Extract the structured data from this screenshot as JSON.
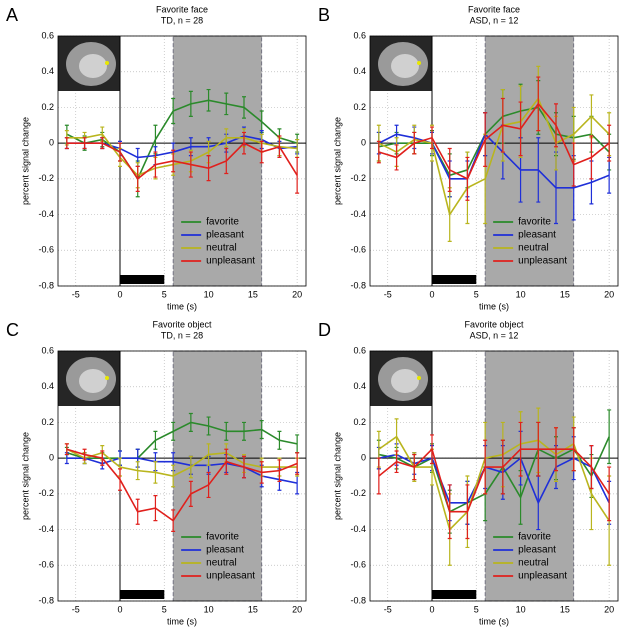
{
  "chart_data": [
    {
      "type": "line",
      "panel_label": "A",
      "title": "Favorite face",
      "subtitle": "TD, n = 28",
      "xlabel": "time (s)",
      "ylabel": "percent signal change",
      "x": [
        -6,
        -4,
        -2,
        0,
        2,
        4,
        6,
        8,
        10,
        12,
        14,
        16,
        18,
        20
      ],
      "xlim": [
        -7,
        21
      ],
      "xticks": [
        -5,
        0,
        5,
        10,
        15,
        20
      ],
      "ylim": [
        -0.8,
        0.6
      ],
      "yticks": [
        -0.8,
        -0.6,
        -0.4,
        -0.2,
        0,
        0.2,
        0.4,
        0.6
      ],
      "grid": true,
      "legend": "lower right",
      "shaded_region": [
        6,
        16
      ],
      "stimulus": [
        0,
        5
      ],
      "series": [
        {
          "name": "favorite",
          "color": "#2b8a2b",
          "values": [
            0.05,
            0.0,
            0.02,
            -0.05,
            -0.2,
            0.02,
            0.18,
            0.22,
            0.24,
            0.22,
            0.2,
            0.12,
            0.03,
            0.0
          ],
          "errors": [
            0.05,
            0.04,
            0.04,
            0.05,
            0.1,
            0.08,
            0.07,
            0.07,
            0.06,
            0.06,
            0.06,
            0.06,
            0.05,
            0.05
          ]
        },
        {
          "name": "pleasant",
          "color": "#1f2fd8",
          "values": [
            0.0,
            0.0,
            0.0,
            -0.03,
            -0.08,
            -0.07,
            -0.05,
            -0.02,
            -0.02,
            0.0,
            0.04,
            0.02,
            -0.03,
            -0.02
          ],
          "errors": [
            0.03,
            0.03,
            0.03,
            0.04,
            0.05,
            0.05,
            0.05,
            0.05,
            0.05,
            0.05,
            0.05,
            0.05,
            0.04,
            0.04
          ]
        },
        {
          "name": "neutral",
          "color": "#b9b51e",
          "values": [
            0.03,
            0.03,
            0.05,
            -0.08,
            -0.18,
            -0.14,
            -0.12,
            -0.1,
            -0.05,
            0.03,
            0.03,
            0.0,
            -0.02,
            -0.03
          ],
          "errors": [
            0.04,
            0.03,
            0.04,
            0.05,
            0.07,
            0.06,
            0.06,
            0.06,
            0.06,
            0.05,
            0.05,
            0.05,
            0.05,
            0.05
          ]
        },
        {
          "name": "unpleasant",
          "color": "#e0201c",
          "values": [
            0.0,
            0.0,
            0.0,
            -0.05,
            -0.2,
            -0.12,
            -0.1,
            -0.12,
            -0.14,
            -0.1,
            0.0,
            -0.05,
            -0.02,
            -0.18
          ],
          "errors": [
            0.03,
            0.03,
            0.03,
            0.05,
            0.07,
            0.07,
            0.06,
            0.07,
            0.07,
            0.07,
            0.06,
            0.06,
            0.06,
            0.1
          ]
        }
      ]
    },
    {
      "type": "line",
      "panel_label": "B",
      "title": "Favorite face",
      "subtitle": "ASD, n = 12",
      "xlabel": "time (s)",
      "ylabel": "percent signal change",
      "x": [
        -6,
        -4,
        -2,
        0,
        2,
        4,
        6,
        8,
        10,
        12,
        14,
        16,
        18,
        20
      ],
      "xlim": [
        -7,
        21
      ],
      "xticks": [
        -5,
        0,
        5,
        10,
        15,
        20
      ],
      "ylim": [
        -0.8,
        0.6
      ],
      "yticks": [
        -0.8,
        -0.6,
        -0.4,
        -0.2,
        0,
        0.2,
        0.4,
        0.6
      ],
      "grid": true,
      "legend": "lower right",
      "shaded_region": [
        6,
        16
      ],
      "stimulus": [
        0,
        5
      ],
      "series": [
        {
          "name": "favorite",
          "color": "#2b8a2b",
          "values": [
            -0.02,
            0.0,
            0.0,
            0.0,
            -0.18,
            -0.15,
            0.05,
            0.15,
            0.18,
            0.2,
            0.05,
            0.03,
            0.05,
            -0.05
          ],
          "errors": [
            0.08,
            0.06,
            0.06,
            0.07,
            0.12,
            0.1,
            0.12,
            0.15,
            0.15,
            0.15,
            0.12,
            0.12,
            0.1,
            0.1
          ]
        },
        {
          "name": "pleasant",
          "color": "#1f2fd8",
          "values": [
            0.0,
            0.05,
            0.03,
            0.0,
            -0.2,
            -0.2,
            0.05,
            -0.05,
            -0.15,
            -0.15,
            -0.25,
            -0.25,
            -0.22,
            -0.18
          ],
          "errors": [
            0.06,
            0.05,
            0.06,
            0.06,
            0.1,
            0.1,
            0.12,
            0.15,
            0.18,
            0.18,
            0.2,
            0.18,
            0.12,
            0.1
          ]
        },
        {
          "name": "neutral",
          "color": "#b9b51e",
          "values": [
            0.0,
            -0.05,
            0.02,
            0.0,
            -0.4,
            -0.25,
            -0.2,
            0.1,
            0.12,
            0.25,
            0.0,
            0.05,
            0.15,
            0.05
          ],
          "errors": [
            0.1,
            0.08,
            0.08,
            0.1,
            0.15,
            0.2,
            0.25,
            0.2,
            0.2,
            0.18,
            0.15,
            0.15,
            0.12,
            0.12
          ]
        },
        {
          "name": "unpleasant",
          "color": "#e0201c",
          "values": [
            -0.05,
            -0.08,
            0.0,
            0.03,
            -0.15,
            -0.2,
            0.02,
            0.1,
            0.08,
            0.22,
            0.1,
            -0.12,
            -0.08,
            0.0
          ],
          "errors": [
            0.06,
            0.07,
            0.06,
            0.06,
            0.12,
            0.12,
            0.15,
            0.15,
            0.15,
            0.15,
            0.12,
            0.12,
            0.12,
            0.1
          ]
        }
      ]
    },
    {
      "type": "line",
      "panel_label": "C",
      "title": "Favorite object",
      "subtitle": "TD, n = 28",
      "xlabel": "time (s)",
      "ylabel": "percent signal change",
      "x": [
        -6,
        -4,
        -2,
        0,
        2,
        4,
        6,
        8,
        10,
        12,
        14,
        16,
        18,
        20
      ],
      "xlim": [
        -7,
        21
      ],
      "xticks": [
        -5,
        0,
        5,
        10,
        15,
        20
      ],
      "ylim": [
        -0.8,
        0.6
      ],
      "yticks": [
        -0.8,
        -0.6,
        -0.4,
        -0.2,
        0,
        0.2,
        0.4,
        0.6
      ],
      "grid": true,
      "legend": "lower right",
      "shaded_region": [
        6,
        16
      ],
      "stimulus": [
        0,
        5
      ],
      "series": [
        {
          "name": "favorite",
          "color": "#2b8a2b",
          "values": [
            0.03,
            0.0,
            0.0,
            0.0,
            0.0,
            0.1,
            0.15,
            0.2,
            0.18,
            0.15,
            0.15,
            0.16,
            0.1,
            0.08
          ],
          "errors": [
            0.03,
            0.03,
            0.03,
            0.04,
            0.05,
            0.05,
            0.05,
            0.05,
            0.05,
            0.05,
            0.05,
            0.05,
            0.05,
            0.05
          ]
        },
        {
          "name": "pleasant",
          "color": "#1f2fd8",
          "values": [
            0.0,
            0.0,
            -0.03,
            0.0,
            0.0,
            -0.02,
            -0.02,
            -0.04,
            -0.04,
            -0.03,
            -0.05,
            -0.1,
            -0.12,
            -0.14
          ],
          "errors": [
            0.03,
            0.03,
            0.03,
            0.04,
            0.05,
            0.05,
            0.05,
            0.05,
            0.05,
            0.05,
            0.06,
            0.06,
            0.06,
            0.06
          ]
        },
        {
          "name": "neutral",
          "color": "#b9b51e",
          "values": [
            0.05,
            0.0,
            0.03,
            -0.05,
            -0.07,
            -0.08,
            -0.1,
            -0.05,
            0.02,
            0.03,
            -0.03,
            -0.05,
            -0.05,
            -0.05
          ],
          "errors": [
            0.03,
            0.03,
            0.04,
            0.05,
            0.05,
            0.06,
            0.06,
            0.06,
            0.06,
            0.05,
            0.05,
            0.05,
            0.05,
            0.05
          ]
        },
        {
          "name": "unpleasant",
          "color": "#e0201c",
          "values": [
            0.05,
            0.02,
            0.0,
            -0.12,
            -0.3,
            -0.28,
            -0.35,
            -0.2,
            -0.15,
            -0.02,
            -0.05,
            -0.08,
            -0.07,
            -0.03
          ],
          "errors": [
            0.03,
            0.03,
            0.04,
            0.06,
            0.07,
            0.07,
            0.06,
            0.07,
            0.07,
            0.07,
            0.06,
            0.06,
            0.06,
            0.06
          ]
        }
      ]
    },
    {
      "type": "line",
      "panel_label": "D",
      "title": "Favorite object",
      "subtitle": "ASD, n = 12",
      "xlabel": "time (s)",
      "ylabel": "percent signal change",
      "x": [
        -6,
        -4,
        -2,
        0,
        2,
        4,
        6,
        8,
        10,
        12,
        14,
        16,
        18,
        20
      ],
      "xlim": [
        -7,
        21
      ],
      "xticks": [
        -5,
        0,
        5,
        10,
        15,
        20
      ],
      "ylim": [
        -0.8,
        0.6
      ],
      "yticks": [
        -0.8,
        -0.6,
        -0.4,
        -0.2,
        0,
        0.2,
        0.4,
        0.6
      ],
      "grid": true,
      "legend": "lower right",
      "shaded_region": [
        6,
        16
      ],
      "stimulus": [
        0,
        5
      ],
      "series": [
        {
          "name": "favorite",
          "color": "#2b8a2b",
          "values": [
            0.02,
            0.0,
            -0.05,
            0.0,
            -0.3,
            -0.25,
            -0.2,
            -0.05,
            -0.22,
            0.05,
            0.0,
            0.05,
            -0.1,
            0.12
          ],
          "errors": [
            0.08,
            0.06,
            0.07,
            0.08,
            0.12,
            0.12,
            0.15,
            0.15,
            0.15,
            0.15,
            0.12,
            0.12,
            0.12,
            0.15
          ]
        },
        {
          "name": "pleasant",
          "color": "#1f2fd8",
          "values": [
            0.0,
            0.02,
            -0.03,
            0.0,
            -0.25,
            -0.25,
            -0.05,
            -0.08,
            0.0,
            -0.25,
            -0.05,
            0.0,
            -0.05,
            -0.25
          ],
          "errors": [
            0.06,
            0.06,
            0.06,
            0.07,
            0.1,
            0.12,
            0.12,
            0.15,
            0.15,
            0.15,
            0.12,
            0.12,
            0.12,
            0.12
          ]
        },
        {
          "name": "neutral",
          "color": "#b9b51e",
          "values": [
            0.05,
            0.12,
            -0.05,
            -0.05,
            -0.4,
            -0.3,
            0.0,
            0.02,
            0.08,
            0.1,
            0.02,
            0.08,
            -0.2,
            -0.35
          ],
          "errors": [
            0.1,
            0.1,
            0.08,
            0.1,
            0.2,
            0.2,
            0.2,
            0.18,
            0.18,
            0.18,
            0.15,
            0.15,
            0.2,
            0.25
          ]
        },
        {
          "name": "unpleasant",
          "color": "#e0201c",
          "values": [
            -0.1,
            -0.02,
            -0.05,
            0.05,
            -0.3,
            -0.3,
            -0.05,
            -0.05,
            0.05,
            0.05,
            0.05,
            0.05,
            -0.05,
            -0.2
          ],
          "errors": [
            0.1,
            0.06,
            0.07,
            0.08,
            0.15,
            0.15,
            0.15,
            0.15,
            0.15,
            0.15,
            0.12,
            0.12,
            0.12,
            0.15
          ]
        }
      ]
    }
  ]
}
